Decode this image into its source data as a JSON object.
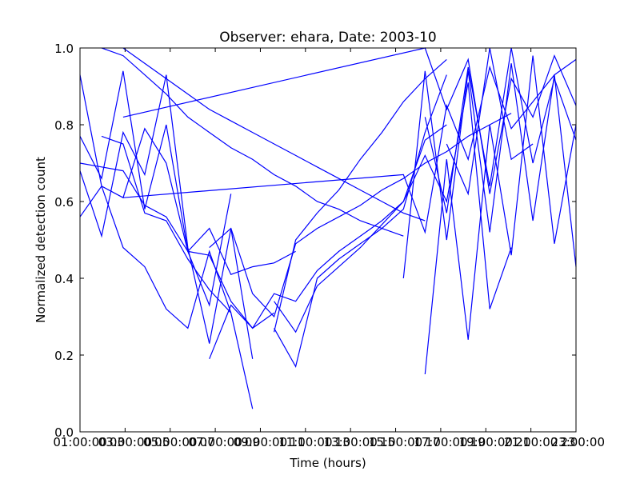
{
  "chart_data": {
    "type": "line",
    "title": "Observer: ehara, Date: 2003-10",
    "xlabel": "Time (hours)",
    "ylabel": "Normalized detection count",
    "x_ticks": [
      "01:00:00",
      "03:00:00",
      "05:00:00",
      "07:00:00",
      "09:00:00",
      "11:00:00",
      "13:00:00",
      "15:00:00",
      "17:00:00",
      "19:00:00",
      "21:00:00",
      "23:00:00"
    ],
    "x_overlap_ticks": [
      "03",
      "05",
      "07",
      "09",
      "11",
      "13",
      "15",
      "17",
      "19",
      "21",
      "23"
    ],
    "y_ticks": [
      "0.0",
      "0.2",
      "0.4",
      "0.6",
      "0.8",
      "1.0"
    ],
    "xlim": [
      1,
      24
    ],
    "ylim": [
      0,
      1
    ],
    "line_color": "#0000ff",
    "series": [
      {
        "x": [
          1,
          2,
          3,
          4,
          5,
          6,
          7,
          8,
          9,
          10
        ],
        "y": [
          0.77,
          0.66,
          0.94,
          0.58,
          0.8,
          0.47,
          0.46,
          0.34,
          0.27,
          0.31
        ]
      },
      {
        "x": [
          1,
          2,
          3,
          4,
          5,
          6,
          7,
          8,
          9,
          10,
          11
        ],
        "y": [
          0.7,
          0.69,
          0.68,
          0.59,
          0.56,
          0.47,
          0.53,
          0.41,
          0.43,
          0.44,
          0.47
        ]
      },
      {
        "x": [
          1,
          2,
          3,
          4,
          5,
          6,
          7,
          8,
          9
        ],
        "y": [
          0.68,
          0.51,
          0.78,
          0.67,
          0.93,
          0.48,
          0.23,
          0.53,
          0.19
        ]
      },
      {
        "x": [
          1,
          2,
          3,
          4,
          5,
          6,
          7,
          8
        ],
        "y": [
          0.56,
          0.64,
          0.48,
          0.43,
          0.32,
          0.27,
          0.47,
          0.31
        ]
      },
      {
        "x": [
          1,
          2,
          3,
          4,
          5,
          6,
          7,
          8
        ],
        "y": [
          0.93,
          0.64,
          0.61,
          0.79,
          0.7,
          0.47,
          0.33,
          0.62
        ]
      },
      {
        "x": [
          2,
          3,
          4,
          5,
          6,
          7,
          8,
          9
        ],
        "y": [
          0.77,
          0.75,
          0.57,
          0.55,
          0.45,
          0.37,
          0.31,
          0.06
        ]
      },
      {
        "x": [
          2,
          3,
          4,
          5,
          6,
          7,
          8,
          9,
          10,
          11,
          12,
          13,
          14,
          15,
          16
        ],
        "y": [
          1.0,
          0.98,
          0.93,
          0.88,
          0.82,
          0.78,
          0.74,
          0.71,
          0.67,
          0.64,
          0.6,
          0.58,
          0.55,
          0.53,
          0.51
        ]
      },
      {
        "x": [
          3,
          4,
          5,
          6,
          7,
          8,
          9,
          10,
          11,
          12,
          13,
          14,
          15,
          16,
          17
        ],
        "y": [
          1.0,
          0.96,
          0.92,
          0.88,
          0.84,
          0.81,
          0.78,
          0.75,
          0.72,
          0.69,
          0.66,
          0.63,
          0.6,
          0.57,
          0.55
        ]
      },
      {
        "x": [
          3,
          17,
          18,
          19,
          20,
          21,
          22,
          23,
          24
        ],
        "y": [
          0.82,
          1.0,
          0.84,
          0.97,
          0.62,
          0.92,
          0.82,
          0.98,
          0.85
        ]
      },
      {
        "x": [
          3,
          16,
          17,
          18,
          19,
          20,
          21,
          22,
          23,
          24
        ],
        "y": [
          0.61,
          0.67,
          0.52,
          0.85,
          0.71,
          0.95,
          0.79,
          0.86,
          0.93,
          0.97
        ]
      },
      {
        "x": [
          7,
          8,
          9,
          10,
          11,
          12,
          13,
          14,
          15,
          16,
          17,
          18,
          19,
          20,
          21
        ],
        "y": [
          0.19,
          0.33,
          0.27,
          0.36,
          0.34,
          0.42,
          0.47,
          0.51,
          0.55,
          0.6,
          0.72,
          0.6,
          0.91,
          0.32,
          0.48
        ]
      },
      {
        "x": [
          7,
          8,
          9,
          10,
          11,
          12,
          13,
          14,
          15,
          16,
          17,
          18,
          19,
          20,
          21
        ],
        "y": [
          0.48,
          0.53,
          0.36,
          0.3,
          0.49,
          0.53,
          0.56,
          0.59,
          0.63,
          0.66,
          0.7,
          0.73,
          0.77,
          0.8,
          0.83
        ]
      },
      {
        "x": [
          10,
          11,
          12,
          13,
          14,
          15,
          16,
          17,
          18
        ],
        "y": [
          0.27,
          0.17,
          0.4,
          0.45,
          0.49,
          0.53,
          0.58,
          0.78,
          0.93
        ]
      },
      {
        "x": [
          10,
          11,
          12,
          13,
          14,
          15,
          16,
          17,
          18
        ],
        "y": [
          0.34,
          0.26,
          0.38,
          0.43,
          0.48,
          0.54,
          0.6,
          0.76,
          0.8
        ]
      },
      {
        "x": [
          10,
          11,
          12,
          13,
          14,
          15,
          16,
          17,
          18
        ],
        "y": [
          0.26,
          0.5,
          0.57,
          0.63,
          0.71,
          0.78,
          0.86,
          0.92,
          0.97
        ]
      },
      {
        "x": [
          16,
          17,
          18,
          19,
          20,
          21,
          22,
          23,
          24
        ],
        "y": [
          0.4,
          0.94,
          0.5,
          0.94,
          0.52,
          0.96,
          0.55,
          0.93,
          0.43
        ]
      },
      {
        "x": [
          17,
          18,
          19,
          20,
          21,
          22,
          23,
          24
        ],
        "y": [
          0.15,
          0.71,
          0.24,
          0.8,
          0.46,
          0.98,
          0.49,
          0.8
        ]
      },
      {
        "x": [
          17,
          18,
          19,
          20,
          21,
          22,
          23,
          24
        ],
        "y": [
          0.82,
          0.57,
          0.95,
          0.64,
          1.0,
          0.7,
          0.92,
          0.76
        ]
      },
      {
        "x": [
          18,
          19,
          20,
          21,
          22
        ],
        "y": [
          0.75,
          0.62,
          1.0,
          0.71,
          0.75
        ]
      }
    ]
  }
}
